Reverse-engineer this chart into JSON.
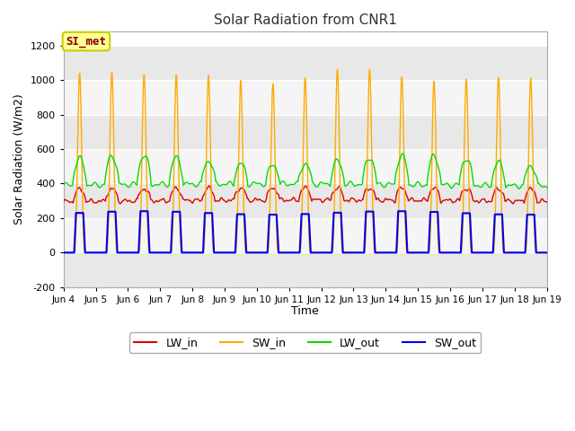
{
  "title": "Solar Radiation from CNR1",
  "xlabel": "Time",
  "ylabel": "Solar Radiation (W/m2)",
  "ylim": [
    -200,
    1280
  ],
  "yticks": [
    -200,
    0,
    200,
    400,
    600,
    800,
    1000,
    1200
  ],
  "date_start": 4,
  "date_end": 19,
  "n_days": 15,
  "colors": {
    "LW_in": "#dd0000",
    "SW_in": "#ffaa00",
    "LW_out": "#00dd00",
    "SW_out": "#0000ee"
  },
  "bg_color": "#ffffff",
  "plot_bg_color": "#ffffff",
  "band_colors": [
    "#e8e8e8",
    "#f5f5f5"
  ],
  "annotation_text": "SI_met",
  "annotation_bg": "#ffff99",
  "annotation_edge": "#cccc00",
  "annotation_text_color": "#880000",
  "grid_color": "#ffffff",
  "legend_labels": [
    "LW_in",
    "SW_in",
    "LW_out",
    "SW_out"
  ]
}
